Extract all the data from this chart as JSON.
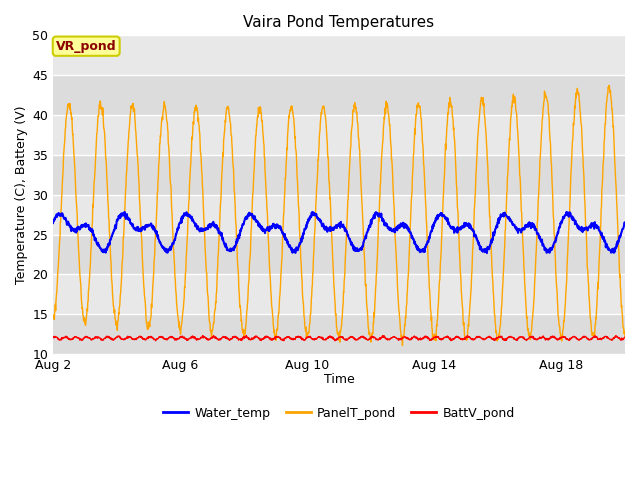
{
  "title": "Vaira Pond Temperatures",
  "xlabel": "Time",
  "ylabel": "Temperature (C), Battery (V)",
  "ylim": [
    10,
    50
  ],
  "yticks": [
    10,
    15,
    20,
    25,
    30,
    35,
    40,
    45,
    50
  ],
  "xtick_positions": [
    0,
    4,
    8,
    12,
    16
  ],
  "xtick_labels": [
    "Aug 2",
    "Aug 6",
    "Aug 10",
    "Aug 14",
    "Aug 18"
  ],
  "xlim": [
    0,
    18
  ],
  "legend_labels": [
    "Water_temp",
    "PanelT_pond",
    "BattV_pond"
  ],
  "legend_colors": [
    "blue",
    "#FFA500",
    "red"
  ],
  "annotation_text": "VR_pond",
  "annotation_color": "#8B0000",
  "annotation_bg": "#FFFF99",
  "annotation_edge": "#CCCC00",
  "water_color": "blue",
  "panel_color": "#FFA500",
  "batt_color": "red",
  "plot_bg_color": "#e8e8e8",
  "fig_bg_color": "#ffffff",
  "grid_color": "#d0d0d0",
  "title_fontsize": 11,
  "label_fontsize": 9,
  "tick_fontsize": 9
}
